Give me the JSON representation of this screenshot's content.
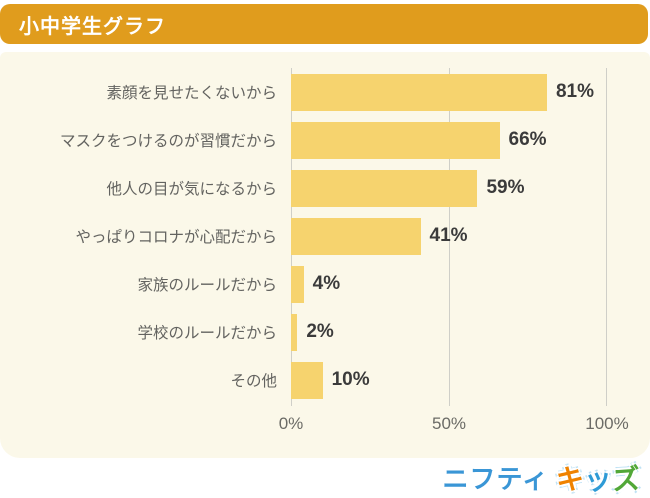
{
  "header": {
    "title": "小中学生グラフ"
  },
  "chart_data": {
    "type": "bar",
    "orientation": "horizontal",
    "title": "小中学生グラフ",
    "categories": [
      "素顔を見せたくないから",
      "マスクをつけるのが習慣だから",
      "他人の目が気になるから",
      "やっぱりコロナが心配だから",
      "家族のルールだから",
      "学校のルールだから",
      "その他"
    ],
    "values": [
      81,
      66,
      59,
      41,
      4,
      2,
      10
    ],
    "value_labels": [
      "81%",
      "66%",
      "59%",
      "41%",
      "4%",
      "2%",
      "10%"
    ],
    "x_ticks": [
      {
        "label": "0%",
        "pos": 0
      },
      {
        "label": "50%",
        "pos": 50
      },
      {
        "label": "100%",
        "pos": 100
      }
    ],
    "xlim": [
      0,
      100
    ],
    "grid": true,
    "legend": "none",
    "bar_color": "#F6D36E"
  },
  "colors": {
    "header_bg": "#E09C1D",
    "panel_bg": "#FBF8E9",
    "bar": "#F6D36E",
    "gridline": "#CFCFC8",
    "category_text": "#636360",
    "value_text": "#3B3B3B"
  },
  "footer": {
    "logo_brand": "ニフティ",
    "logo_sub": "キッズ",
    "logo_sub_chars": [
      {
        "char": "キ",
        "color": "#EF8200"
      },
      {
        "char": "ッ",
        "color": "#2E9BD6"
      },
      {
        "char": "ズ",
        "color": "#52A838"
      }
    ],
    "logo_brand_color": "#3A96D6"
  }
}
